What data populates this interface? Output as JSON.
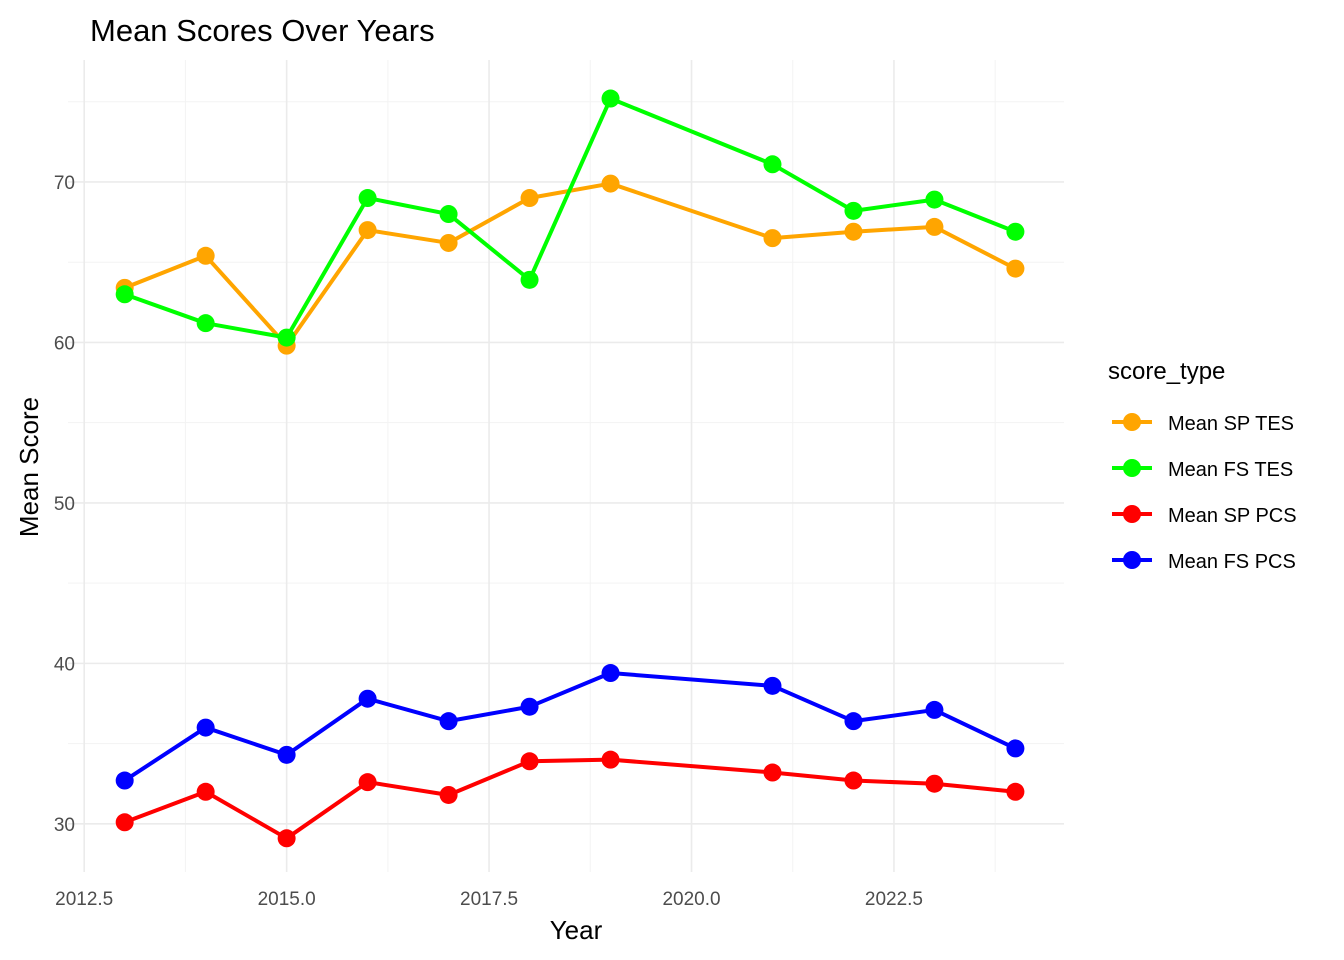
{
  "chart_data": {
    "type": "line",
    "title": "Mean Scores Over Years",
    "xlabel": "Year",
    "ylabel": "Mean Score",
    "xlim": [
      2012.3,
      2024.6
    ],
    "ylim": [
      27.0,
      77.6
    ],
    "x_ticks": [
      2012.5,
      2015.0,
      2017.5,
      2020.0,
      2022.5
    ],
    "x_tick_labels": [
      "2012.5",
      "2015.0",
      "2017.5",
      "2020.0",
      "2022.5"
    ],
    "y_ticks": [
      30,
      40,
      50,
      60,
      70
    ],
    "y_tick_labels": [
      "30",
      "40",
      "50",
      "60",
      "70"
    ],
    "x_minor_ticks": [
      2013.75,
      2016.25,
      2018.75,
      2021.25,
      2023.75
    ],
    "y_minor_ticks": [
      35,
      45,
      55,
      65,
      75
    ],
    "grid": true,
    "legend": {
      "title": "score_type",
      "placement": "right"
    },
    "x": [
      2013,
      2014,
      2015,
      2016,
      2017,
      2018,
      2019,
      2021,
      2022,
      2023,
      2024
    ],
    "series": [
      {
        "name": "Mean SP TES",
        "color": "#FFA500",
        "values": [
          63.4,
          65.4,
          59.8,
          67.0,
          66.2,
          69.0,
          69.9,
          66.5,
          66.9,
          67.2,
          64.6
        ]
      },
      {
        "name": "Mean FS TES",
        "color": "#00FF00",
        "values": [
          63.0,
          61.2,
          60.3,
          69.0,
          68.0,
          63.9,
          75.2,
          71.1,
          68.2,
          68.9,
          66.9
        ]
      },
      {
        "name": "Mean SP PCS",
        "color": "#FF0000",
        "values": [
          30.1,
          32.0,
          29.1,
          32.6,
          31.8,
          33.9,
          34.0,
          33.2,
          32.7,
          32.5,
          32.0
        ]
      },
      {
        "name": "Mean FS PCS",
        "color": "#0000FF",
        "values": [
          32.7,
          36.0,
          34.3,
          37.8,
          36.4,
          37.3,
          39.4,
          38.6,
          36.4,
          37.1,
          34.7
        ]
      }
    ]
  }
}
